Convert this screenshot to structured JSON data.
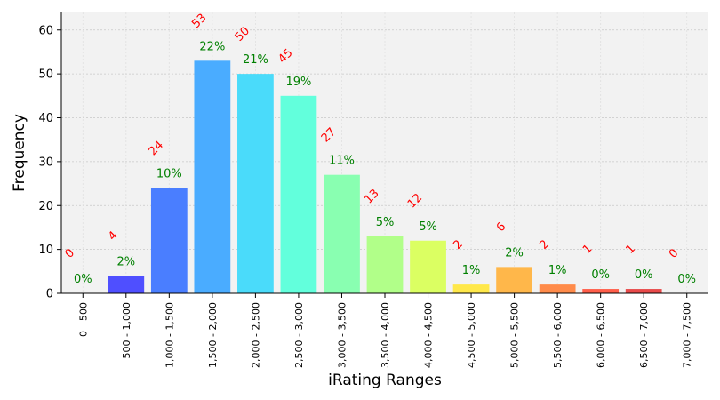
{
  "chart_data": {
    "type": "bar",
    "title": "",
    "xlabel": "iRating Ranges",
    "ylabel": "Frequency",
    "ylim": [
      0,
      64
    ],
    "yticks": [
      0,
      10,
      20,
      30,
      40,
      50,
      60
    ],
    "grid": true,
    "categories": [
      "0 - 500",
      "500 - 1,000",
      "1,000 - 1,500",
      "1,500 - 2,000",
      "2,000 - 2,500",
      "2,500 - 3,000",
      "3,000 - 3,500",
      "3,500 - 4,000",
      "4,000 - 4,500",
      "4,500 - 5,000",
      "5,000 - 5,500",
      "5,500 - 6,000",
      "6,000 - 6,500",
      "6,500 - 7,000",
      "7,000 - 7,500"
    ],
    "values": [
      0,
      4,
      24,
      53,
      50,
      45,
      27,
      13,
      12,
      2,
      6,
      2,
      1,
      1,
      0
    ],
    "percent_labels": [
      "0%",
      "2%",
      "10%",
      "22%",
      "21%",
      "19%",
      "11%",
      "5%",
      "5%",
      "1%",
      "2%",
      "1%",
      "0%",
      "0%",
      "0%"
    ],
    "count_labels": [
      "0",
      "4",
      "24",
      "53",
      "50",
      "45",
      "27",
      "13",
      "12",
      "2",
      "6",
      "2",
      "1",
      "1",
      "0"
    ],
    "colors": [
      "#3f00ff",
      "#4f4fff",
      "#4a7eff",
      "#4aacff",
      "#4adbfa",
      "#62ffdc",
      "#89ffb1",
      "#b1ff89",
      "#dbff62",
      "#ffe84a",
      "#ffb74a",
      "#ff8b4a",
      "#ff5e4a",
      "#e84a4a",
      "#cc0000"
    ],
    "count_label_color": "#ff0000",
    "percent_label_color": "#008000",
    "plot_background": "#f2f2f2"
  }
}
